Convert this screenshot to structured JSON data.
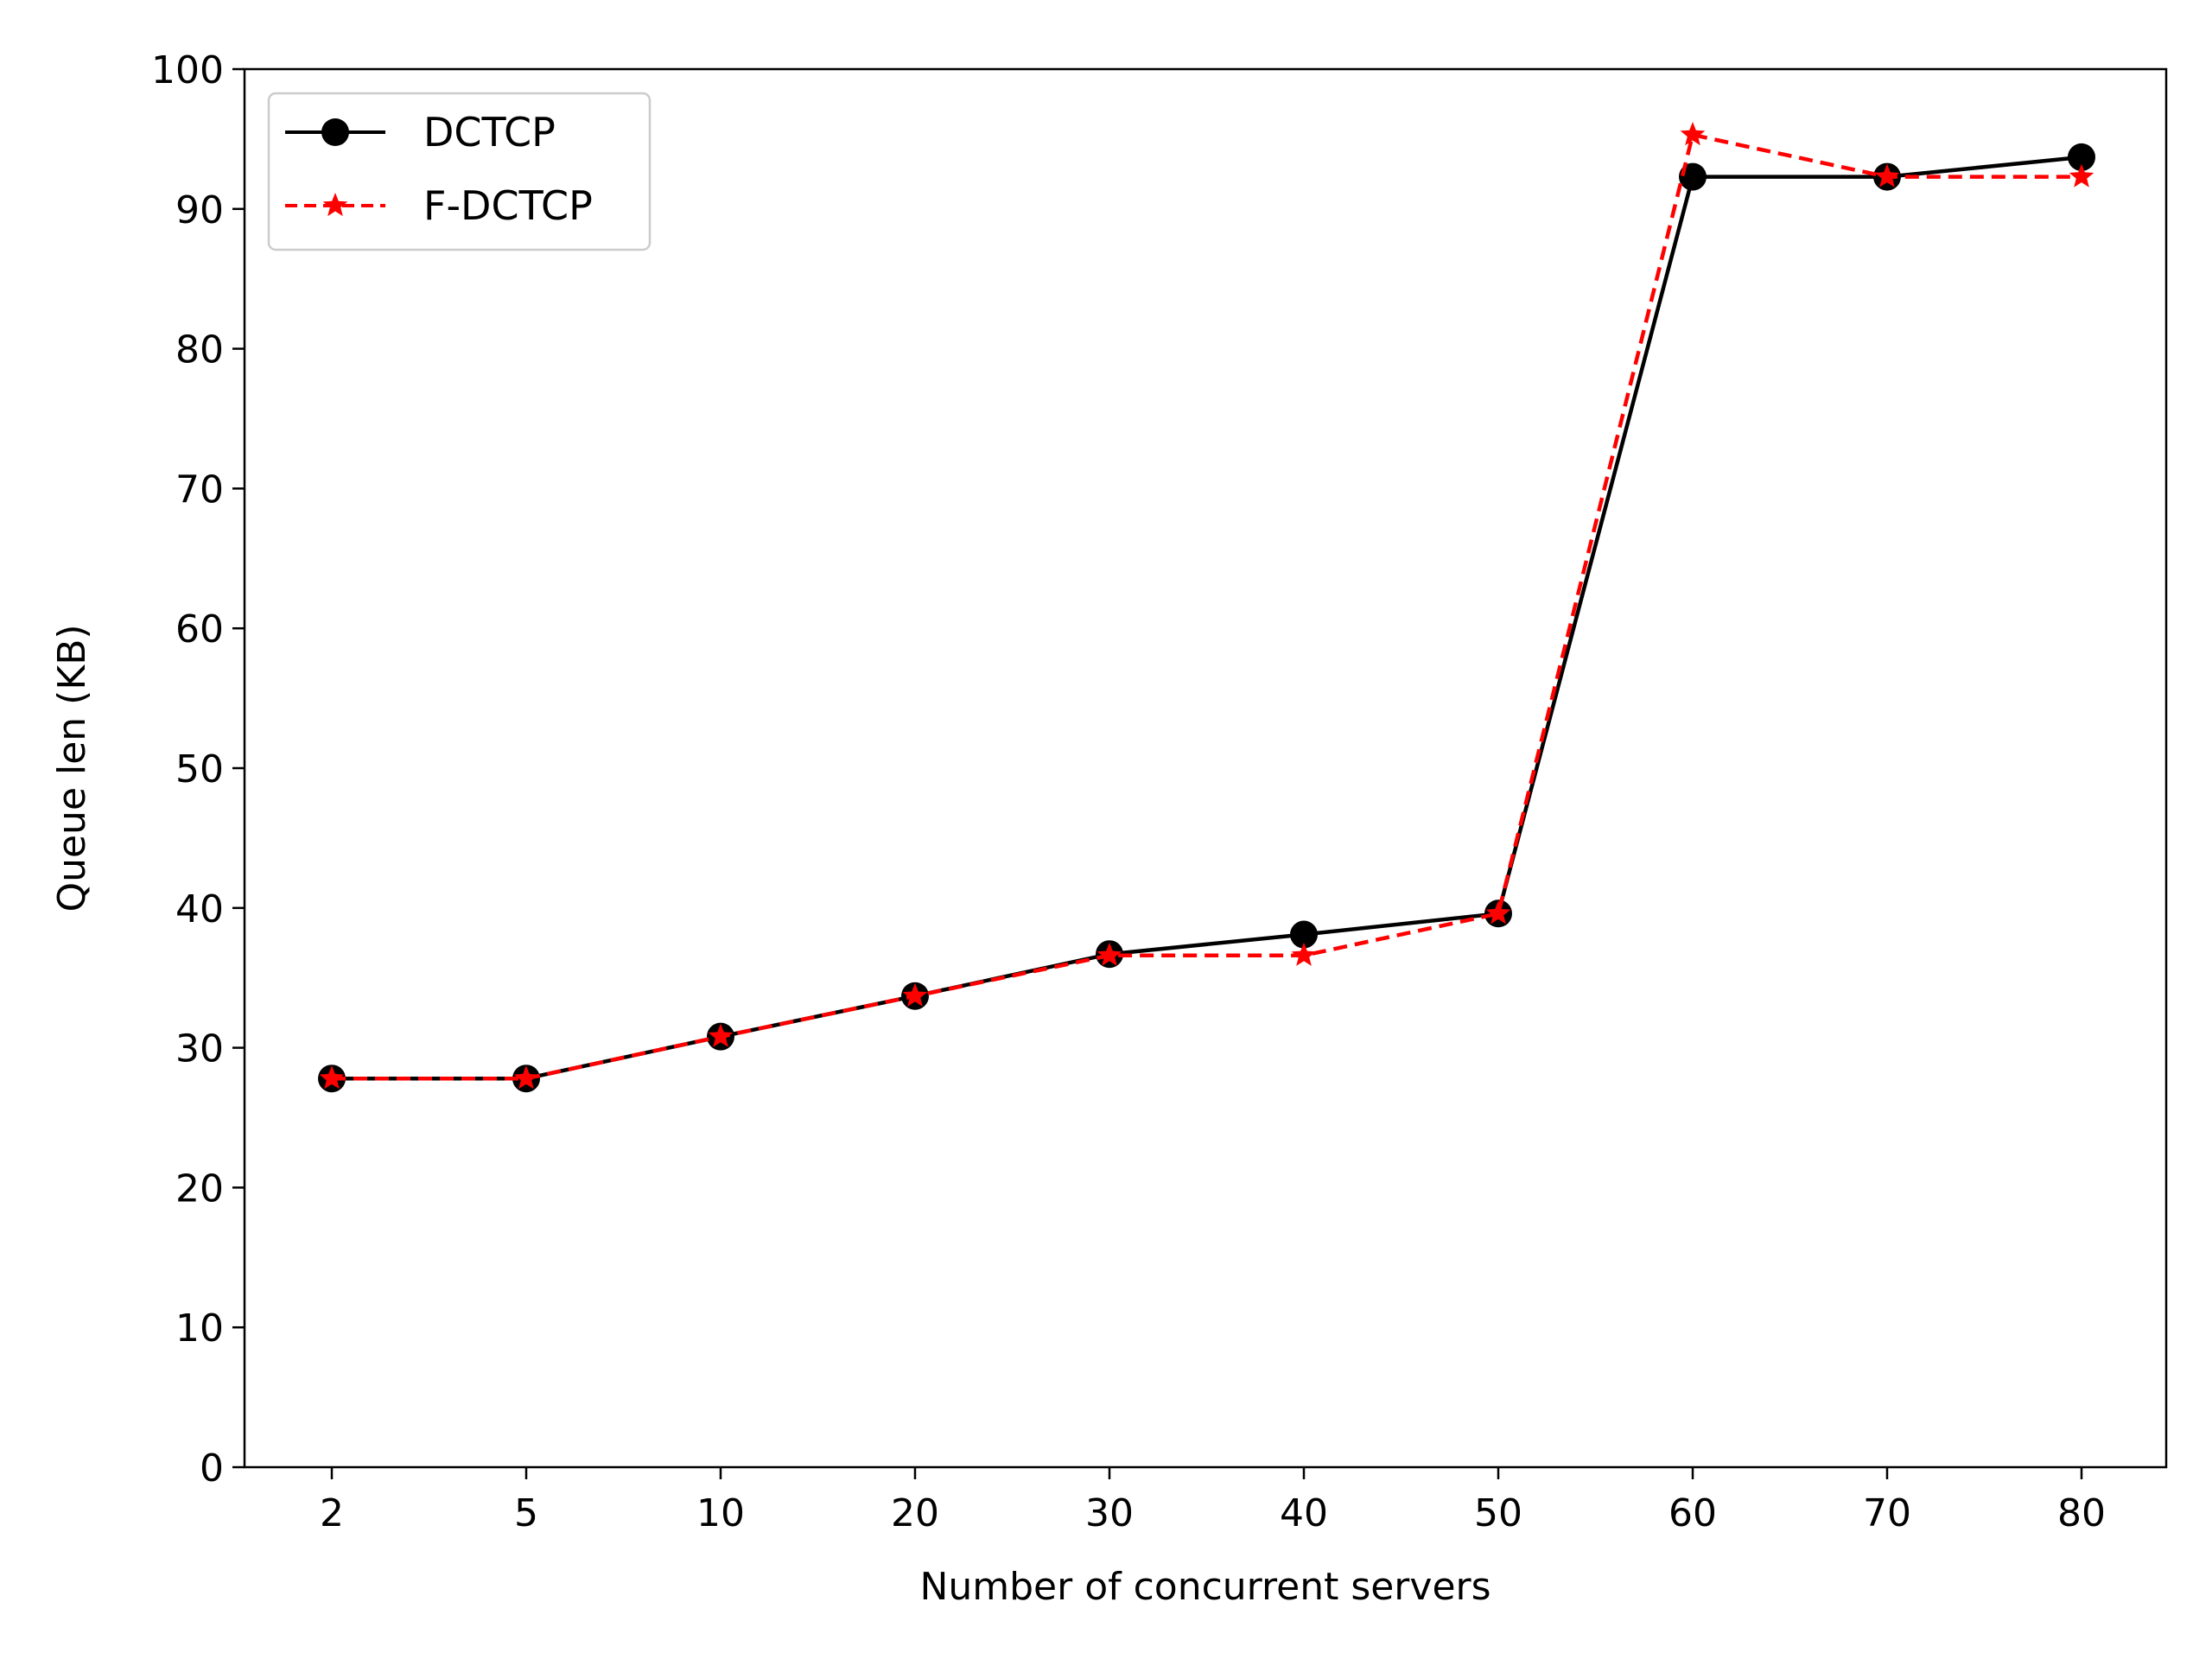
{
  "chart_data": {
    "type": "line",
    "categories": [
      "2",
      "5",
      "10",
      "20",
      "30",
      "40",
      "50",
      "60",
      "70",
      "80"
    ],
    "series": [
      {
        "name": "DCTCP",
        "values": [
          27.8,
          27.8,
          30.8,
          33.7,
          36.7,
          38.1,
          39.6,
          92.3,
          92.3,
          93.7
        ],
        "color": "#000000",
        "line_style": "solid",
        "marker": "circle"
      },
      {
        "name": "F-DCTCP",
        "values": [
          27.8,
          27.8,
          30.8,
          33.7,
          36.6,
          36.6,
          39.6,
          95.3,
          92.3,
          92.3
        ],
        "color": "#ff0000",
        "line_style": "dashed",
        "marker": "star"
      }
    ],
    "title": "",
    "xlabel": "Number of concurrent servers",
    "ylabel": "Queue len (KB)",
    "ylim": [
      0,
      100
    ],
    "yticks": [
      0,
      10,
      20,
      30,
      40,
      50,
      60,
      70,
      80,
      90,
      100
    ],
    "grid": false,
    "legend_position": "top-left"
  }
}
